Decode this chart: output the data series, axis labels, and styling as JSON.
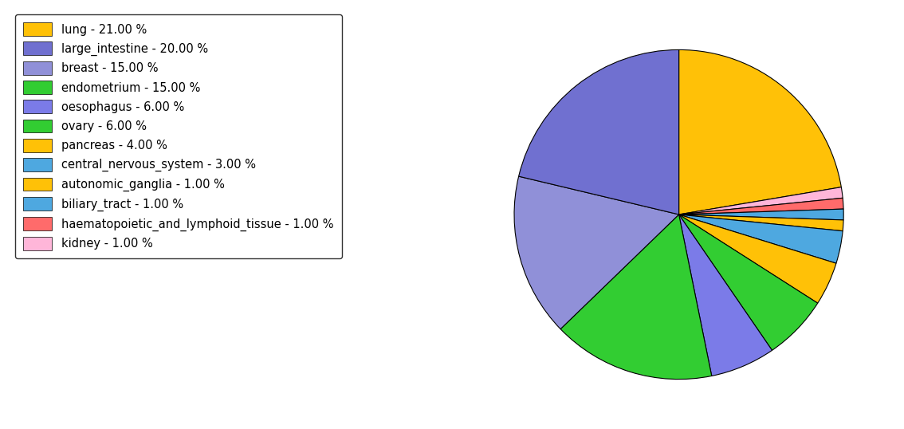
{
  "labels": [
    "lung",
    "kidney",
    "haematopoietic_and_lymphoid_tissue",
    "biliary_tract",
    "autonomic_ganglia",
    "central_nervous_system",
    "pancreas",
    "ovary",
    "oesophagus",
    "endometrium",
    "breast",
    "large_intestine"
  ],
  "values": [
    21,
    1,
    1,
    1,
    1,
    3,
    4,
    6,
    6,
    15,
    15,
    20
  ],
  "pie_colors": [
    "#FFC107",
    "#FFB6D9",
    "#FF6B6B",
    "#4EA8E0",
    "#FFC107",
    "#4EA8E0",
    "#FFC107",
    "#32CD32",
    "#7B7BE8",
    "#32CD32",
    "#9090D8",
    "#7070D0"
  ],
  "legend_labels": [
    "lung - 21.00 %",
    "large_intestine - 20.00 %",
    "breast - 15.00 %",
    "endometrium - 15.00 %",
    "oesophagus - 6.00 %",
    "ovary - 6.00 %",
    "pancreas - 4.00 %",
    "central_nervous_system - 3.00 %",
    "autonomic_ganglia - 1.00 %",
    "biliary_tract - 1.00 %",
    "haematopoietic_and_lymphoid_tissue - 1.00 %",
    "kidney - 1.00 %"
  ],
  "legend_colors": [
    "#FFC107",
    "#7070D0",
    "#9090D8",
    "#32CD32",
    "#7B7BE8",
    "#32CD32",
    "#FFC107",
    "#4EA8E0",
    "#FFC107",
    "#4EA8E0",
    "#FF6B6B",
    "#FFB6D9"
  ],
  "startangle": 90,
  "figsize": [
    11.34,
    5.38
  ],
  "dpi": 100
}
